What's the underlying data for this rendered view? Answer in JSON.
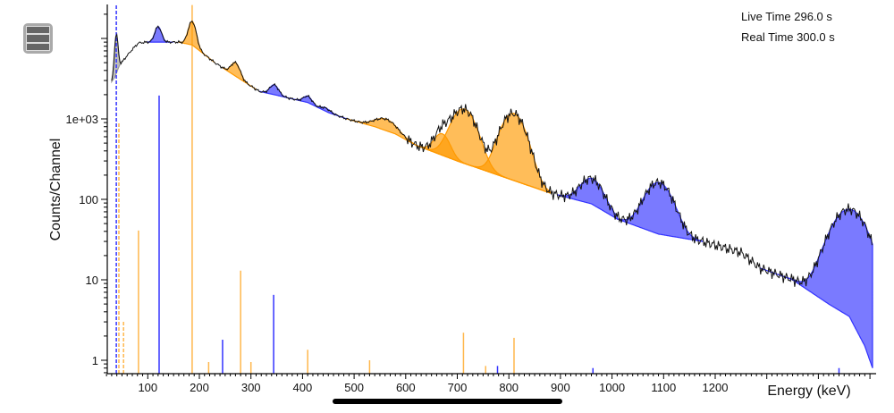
{
  "menu": {
    "icon": "hamburger-menu-icon"
  },
  "info": {
    "live_time": "Live Time 296.0 s",
    "real_time": "Real Time 300.0 s"
  },
  "chart_data": {
    "type": "line",
    "title": "",
    "xlabel": "Energy (keV)",
    "ylabel": "Counts/Channel",
    "xlim": [
      20,
      1510
    ],
    "ylim": [
      0.68,
      26000
    ],
    "yscale": "log",
    "xticks": [
      100,
      200,
      300,
      400,
      500,
      600,
      700,
      800,
      900,
      1000,
      1100,
      1200
    ],
    "xtick_labels": [
      "100",
      "200",
      "300",
      "400",
      "500",
      "600",
      "700",
      "800",
      "900",
      "1000",
      "1100",
      "1200"
    ],
    "yticks": [
      1,
      10,
      100,
      1000
    ],
    "ytick_labels": [
      "1",
      "10",
      "100",
      "1e+03"
    ],
    "continuum": [
      [
        30,
        2900
      ],
      [
        36,
        3300
      ],
      [
        45,
        4600
      ],
      [
        56,
        5700
      ],
      [
        70,
        7300
      ],
      [
        82,
        8800
      ],
      [
        100,
        9000
      ],
      [
        160,
        9000
      ],
      [
        186,
        8300
      ],
      [
        230,
        5000
      ],
      [
        270,
        3400
      ],
      [
        316,
        2200
      ],
      [
        345,
        2000
      ],
      [
        410,
        1600
      ],
      [
        450,
        1200
      ],
      [
        486,
        1000
      ],
      [
        540,
        800
      ],
      [
        580,
        650
      ],
      [
        620,
        470
      ],
      [
        700,
        300
      ],
      [
        800,
        180
      ],
      [
        880,
        120
      ],
      [
        960,
        88
      ],
      [
        1010,
        57
      ],
      [
        1090,
        37
      ],
      [
        1175,
        30
      ],
      [
        1250,
        22
      ],
      [
        1287,
        14
      ],
      [
        1350,
        10
      ],
      [
        1420,
        5
      ],
      [
        1460,
        3.5
      ],
      [
        1490,
        1.5
      ],
      [
        1505,
        0.8
      ]
    ],
    "peaks": [
      {
        "energy": 39,
        "height": 7500,
        "sigma": 3,
        "color": "#999999",
        "region": [
          30,
          52
        ]
      },
      {
        "energy": 120,
        "height": 5000,
        "sigma": 6,
        "color": "#3333ff",
        "region": [
          100,
          150
        ]
      },
      {
        "energy": 186,
        "height": 8000,
        "sigma": 7,
        "color": "#ff9900",
        "region": [
          160,
          230
        ]
      },
      {
        "energy": 270,
        "height": 1600,
        "sigma": 8,
        "color": "#ff9900",
        "region": [
          245,
          310
        ]
      },
      {
        "energy": 345,
        "height": 650,
        "sigma": 8,
        "color": "#3333ff",
        "region": [
          316,
          380
        ]
      },
      {
        "energy": 410,
        "height": 320,
        "sigma": 8,
        "color": "#3333ff",
        "region": [
          380,
          430
        ]
      },
      {
        "energy": 445,
        "height": 120,
        "sigma": 9,
        "color": "#3333ff",
        "region": [
          430,
          486
        ]
      },
      {
        "energy": 560,
        "height": 280,
        "sigma": 20,
        "color": "#ff9900",
        "region": [
          486,
          620
        ]
      },
      {
        "energy": 670,
        "height": 300,
        "sigma": 14,
        "color": "#ff9900",
        "region": [
          620,
          880
        ]
      },
      {
        "energy": 712,
        "height": 1050,
        "sigma": 22,
        "color": "#ff9900",
        "region": [
          620,
          880
        ]
      },
      {
        "energy": 808,
        "height": 1000,
        "sigma": 22,
        "color": "#ff9900",
        "region": [
          620,
          880
        ]
      },
      {
        "energy": 960,
        "height": 95,
        "sigma": 20,
        "color": "#3333ff",
        "region": [
          895,
          1010
        ]
      },
      {
        "energy": 1090,
        "height": 125,
        "sigma": 24,
        "color": "#3333ff",
        "region": [
          1010,
          1175
        ]
      },
      {
        "energy": 1460,
        "height": 72,
        "sigma": 32,
        "color": "#3333ff",
        "region": [
          1287,
          1505
        ]
      }
    ],
    "lines": [
      {
        "energy": 39,
        "value": 26000,
        "color": "#3333ff",
        "dashed": true
      },
      {
        "energy": 44,
        "value": 900,
        "color": "#ff9900",
        "dashed": true
      },
      {
        "energy": 53,
        "value": 3,
        "color": "#ff9900",
        "dashed": true
      },
      {
        "energy": 82,
        "value": 41,
        "color": "#ff9900",
        "dashed": false
      },
      {
        "energy": 122,
        "value": 1950,
        "color": "#3333ff",
        "dashed": false
      },
      {
        "energy": 186,
        "value": 26000,
        "color": "#ff9900",
        "dashed": false
      },
      {
        "energy": 218,
        "value": 0.95,
        "color": "#ff9900",
        "dashed": false
      },
      {
        "energy": 245,
        "value": 1.8,
        "color": "#3333ff",
        "dashed": false
      },
      {
        "energy": 280,
        "value": 13,
        "color": "#ff9900",
        "dashed": false
      },
      {
        "energy": 300,
        "value": 0.95,
        "color": "#ff9900",
        "dashed": false
      },
      {
        "energy": 344,
        "value": 6.5,
        "color": "#3333ff",
        "dashed": false
      },
      {
        "energy": 410,
        "value": 1.35,
        "color": "#ff9900",
        "dashed": false
      },
      {
        "energy": 530,
        "value": 1.0,
        "color": "#ff9900",
        "dashed": false
      },
      {
        "energy": 712,
        "value": 2.2,
        "color": "#ff9900",
        "dashed": false
      },
      {
        "energy": 755,
        "value": 0.85,
        "color": "#ff9900",
        "dashed": false
      },
      {
        "energy": 778,
        "value": 0.85,
        "color": "#3333ff",
        "dashed": false
      },
      {
        "energy": 810,
        "value": 1.9,
        "color": "#ff9900",
        "dashed": false
      },
      {
        "energy": 963,
        "value": 0.8,
        "color": "#3333ff",
        "dashed": false
      },
      {
        "energy": 1440,
        "value": 0.8,
        "color": "#3333ff",
        "dashed": false
      }
    ]
  }
}
